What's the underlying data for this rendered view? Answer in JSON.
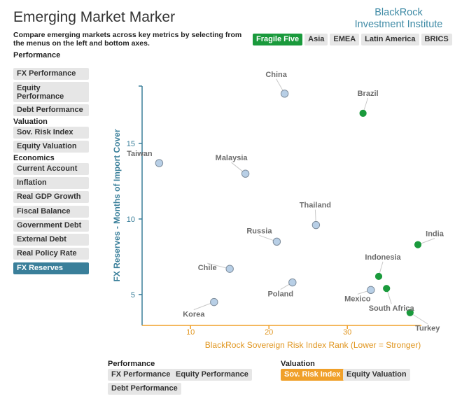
{
  "header": {
    "title": "Emerging Market Marker",
    "subtitle": "Compare emerging markets across key metrics by selecting from the menus on the left and bottom axes.",
    "brand_line1": "BlackRock",
    "brand_line2": "Investment Institute"
  },
  "region_tabs": [
    {
      "label": "Fragile Five",
      "active": true
    },
    {
      "label": "Asia",
      "active": false
    },
    {
      "label": "EMEA",
      "active": false
    },
    {
      "label": "Latin America",
      "active": false
    },
    {
      "label": "BRICS",
      "active": false
    }
  ],
  "left_menu": {
    "performance_label": "Performance",
    "performance": [
      "FX Performance",
      "Equity Performance",
      "Debt Performance"
    ],
    "valuation_label": "Valuation",
    "valuation": [
      "Sov. Risk Index",
      "Equity Valuation"
    ],
    "economics_label": "Economics",
    "economics": [
      "Current Account",
      "Inflation",
      "Real GDP Growth",
      "Fiscal Balance",
      "Government Debt",
      "External Debt",
      "Real Policy Rate",
      "FX Reserves"
    ],
    "selected": "FX Reserves"
  },
  "bottom_menu": {
    "performance_label": "Performance",
    "performance": [
      "FX Performance",
      "Equity Performance",
      "Debt Performance"
    ],
    "valuation_label": "Valuation",
    "valuation": [
      "Sov. Risk Index",
      "Equity Valuation"
    ],
    "selected": "Sov. Risk Index"
  },
  "colors": {
    "highlight": "#1a9a3c",
    "normal_fill": "#b8cfe6",
    "normal_stroke": "#7e8d9c",
    "y_axis": "#3a7f9a",
    "x_axis": "#f0a02a"
  },
  "chart_data": {
    "type": "scatter",
    "xlabel": "BlackRock Sovereign Risk Index Rank (Lower = Stronger)",
    "ylabel": "FX Reserves - Months of Import Cover",
    "xlim": [
      4,
      39
    ],
    "ylim": [
      3,
      18.8
    ],
    "xticks": [
      10,
      20,
      30
    ],
    "yticks": [
      5,
      10,
      15
    ],
    "points": [
      {
        "name": "China",
        "x": 22,
        "y": 18.3,
        "highlight": false
      },
      {
        "name": "Brazil",
        "x": 32,
        "y": 17.0,
        "highlight": true
      },
      {
        "name": "Taiwan",
        "x": 6,
        "y": 13.7,
        "highlight": false
      },
      {
        "name": "Malaysia",
        "x": 17,
        "y": 13.0,
        "highlight": false
      },
      {
        "name": "Thailand",
        "x": 26,
        "y": 9.6,
        "highlight": false
      },
      {
        "name": "Russia",
        "x": 21,
        "y": 8.5,
        "highlight": false
      },
      {
        "name": "India",
        "x": 39,
        "y": 8.3,
        "highlight": true
      },
      {
        "name": "Chile",
        "x": 15,
        "y": 6.7,
        "highlight": false
      },
      {
        "name": "Indonesia",
        "x": 34,
        "y": 6.2,
        "highlight": true
      },
      {
        "name": "Poland",
        "x": 23,
        "y": 5.8,
        "highlight": false
      },
      {
        "name": "Mexico",
        "x": 33,
        "y": 5.3,
        "highlight": false
      },
      {
        "name": "South Africa",
        "x": 35,
        "y": 5.4,
        "highlight": true
      },
      {
        "name": "Korea",
        "x": 13,
        "y": 4.5,
        "highlight": false
      },
      {
        "name": "Turkey",
        "x": 38,
        "y": 3.8,
        "highlight": true
      }
    ]
  }
}
